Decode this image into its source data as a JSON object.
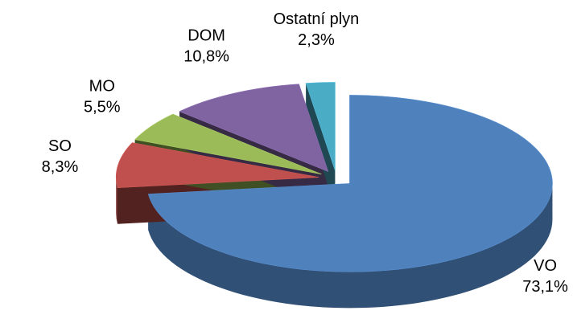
{
  "chart_data": {
    "type": "pie",
    "categories": [
      "VO",
      "SO",
      "MO",
      "DOM",
      "Ostatní plyn"
    ],
    "values": [
      73.1,
      8.3,
      5.5,
      10.8,
      2.3
    ],
    "value_labels": [
      "73,1%",
      "8,3%",
      "5,5%",
      "10,8%",
      "2,3%"
    ],
    "colors": [
      "#4f81bd",
      "#c0504d",
      "#9bbb59",
      "#8064a2",
      "#4bacc6"
    ]
  }
}
